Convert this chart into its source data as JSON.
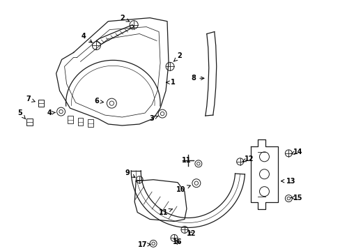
{
  "bg_color": "#ffffff",
  "line_color": "#1a1a1a",
  "label_color": "#000000",
  "lw": 0.9,
  "fig_w": 4.89,
  "fig_h": 3.6,
  "dpi": 100
}
